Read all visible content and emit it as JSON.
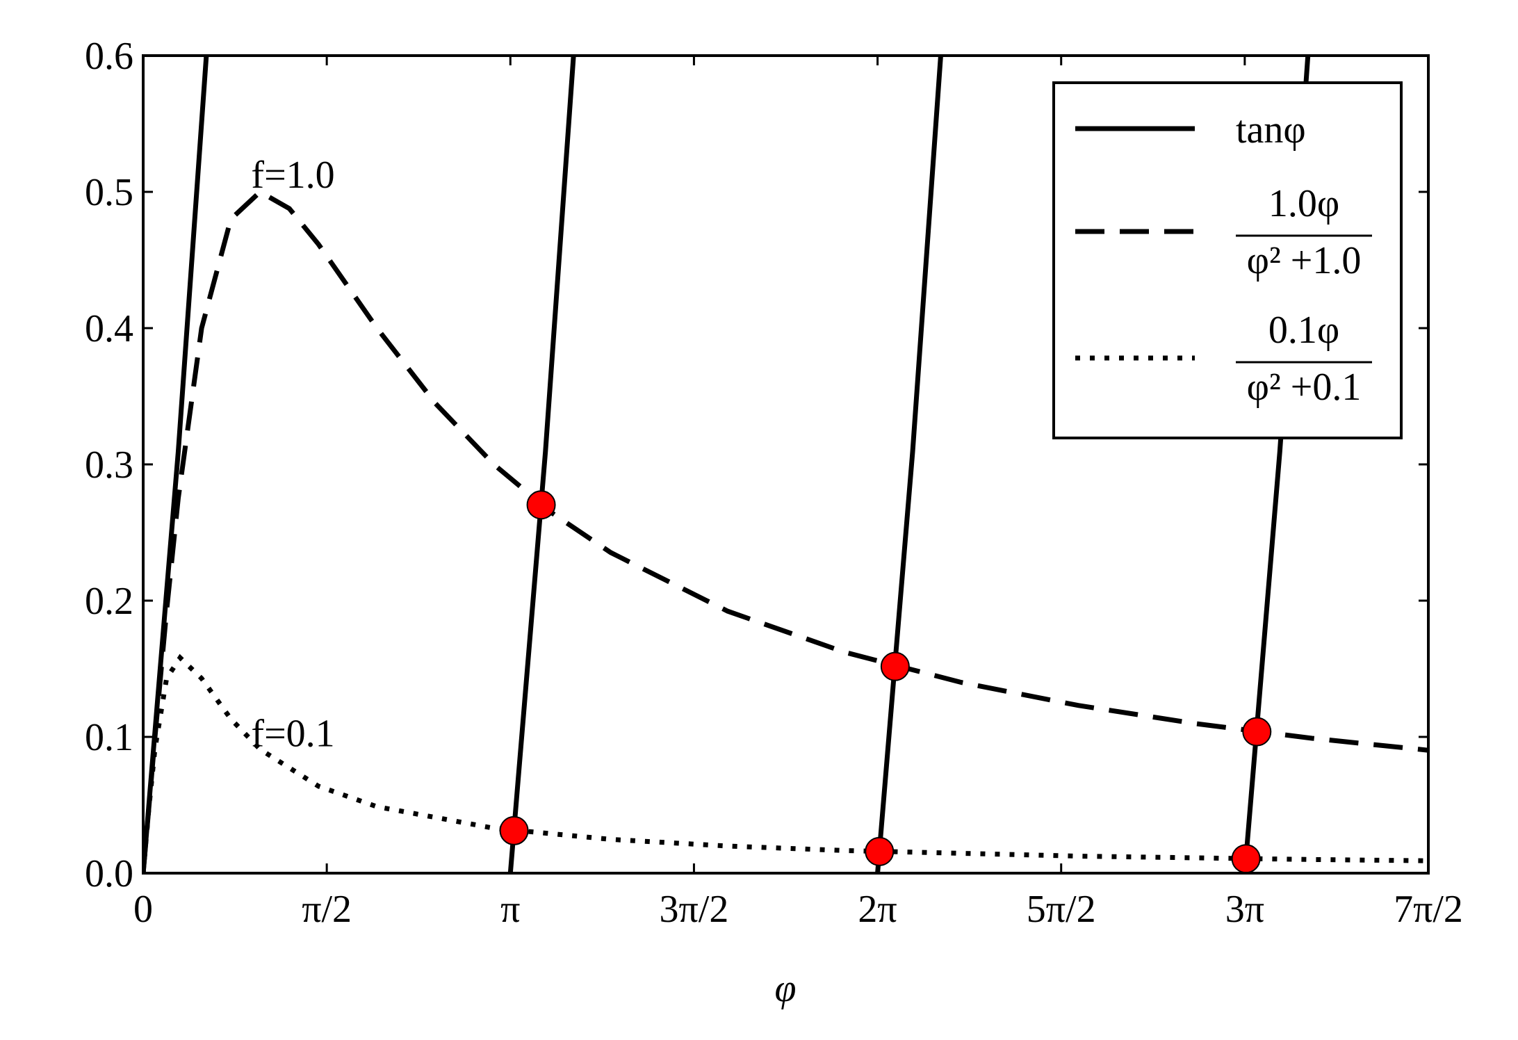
{
  "chart_data": {
    "type": "line",
    "xlabel": "φ",
    "xlim": [
      0,
      10.9956
    ],
    "ylim": [
      0,
      0.6
    ],
    "xticks": [
      0,
      {
        "value": 1.5708,
        "label": "π/2"
      },
      {
        "value": 3.1416,
        "label": "π"
      },
      {
        "value": 4.7124,
        "label": "3π/2"
      },
      {
        "value": 6.2832,
        "label": "2π"
      },
      {
        "value": 7.854,
        "label": "5π/2"
      },
      {
        "value": 9.4248,
        "label": "3π"
      },
      {
        "value": 10.9956,
        "label": "7π/2"
      }
    ],
    "yticks": [
      {
        "value": 0,
        "label": "0.0"
      },
      0.1,
      0.2,
      0.3,
      0.4,
      0.5,
      0.6
    ],
    "legend": "upper right",
    "series": [
      {
        "name": "tanφ",
        "color": "#000000",
        "linestyle": "solid",
        "x": [
          0,
          0.3,
          0.54,
          1,
          3.1416,
          3.4416,
          3.6816,
          4,
          6.2832,
          6.5832,
          6.8232,
          7,
          9.4248,
          9.7248,
          9.9648
        ],
        "values": [
          0,
          0.3093,
          0.5994,
          null,
          0,
          0.3093,
          0.5994,
          null,
          0,
          0.3093,
          0.5994,
          null,
          0,
          0.3093,
          0.5994
        ]
      },
      {
        "name": {
          "numerator": "1.0φ",
          "denominator": "φ² +1.0"
        },
        "color": "#000000",
        "linestyle": "dashed",
        "x": [
          0,
          0.1,
          0.2,
          0.3,
          0.5,
          0.75,
          1,
          1.25,
          1.5,
          2,
          2.5,
          3,
          3.5,
          4,
          5,
          6,
          7,
          8,
          9,
          10,
          10.9956
        ],
        "values": [
          0,
          0.099,
          0.1923,
          0.2752,
          0.4,
          0.48,
          0.5,
          0.4878,
          0.4615,
          0.4,
          0.3448,
          0.3,
          0.2642,
          0.2353,
          0.1923,
          0.1622,
          0.14,
          0.1231,
          0.1098,
          0.099,
          0.0902
        ]
      },
      {
        "name": {
          "numerator": "0.1φ",
          "denominator": "φ² +0.1"
        },
        "color": "#000000",
        "linestyle": "dotted",
        "x": [
          0,
          0.05,
          0.1,
          0.2,
          0.316,
          0.5,
          0.75,
          1,
          1.5,
          2,
          3,
          4,
          5,
          6,
          8,
          10,
          10.9956
        ],
        "values": [
          0,
          0.0488,
          0.0909,
          0.1429,
          0.1581,
          0.1429,
          0.1132,
          0.0909,
          0.0638,
          0.0488,
          0.033,
          0.0248,
          0.0199,
          0.0166,
          0.0125,
          0.01,
          0.0091
        ]
      }
    ],
    "markers": {
      "color": "#ff0000",
      "x": [
        3.405,
        6.4337,
        9.5285,
        3.173,
        6.2991,
        9.4354
      ],
      "values": [
        0.2703,
        0.1517,
        0.1038,
        0.0312,
        0.0159,
        0.0106
      ]
    },
    "annotations": [
      {
        "text": "f=1.0",
        "x": 0.96,
        "y": 0.5
      },
      {
        "text": "f=0.1",
        "x": 0.96,
        "y": 0.09
      }
    ]
  }
}
